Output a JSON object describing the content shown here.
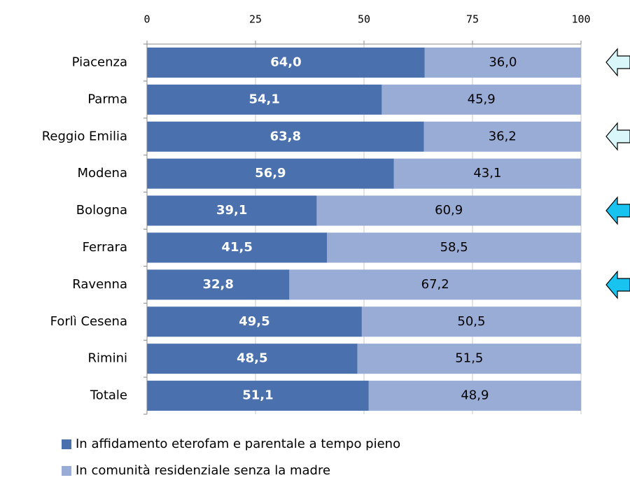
{
  "chart_data": {
    "type": "stacked_bar_horizontal",
    "categories": [
      "Piacenza",
      "Parma",
      "Reggio Emilia",
      "Modena",
      "Bologna",
      "Ferrara",
      "Ravenna",
      "Forlì Cesena",
      "Rimini",
      "Totale"
    ],
    "series": [
      {
        "name": "In affidamento eterofam e parentale a tempo pieno",
        "color": "#4a70ad",
        "values": [
          64.0,
          54.1,
          63.8,
          56.9,
          39.1,
          41.5,
          32.8,
          49.5,
          48.5,
          51.1
        ],
        "value_labels": [
          "64,0",
          "54,1",
          "63,8",
          "56,9",
          "39,1",
          "41,5",
          "32,8",
          "49,5",
          "48,5",
          "51,1"
        ]
      },
      {
        "name": "In comunità residenziale senza la madre",
        "color": "#98acd6",
        "values": [
          36.0,
          45.9,
          36.2,
          43.1,
          60.9,
          58.5,
          67.2,
          50.5,
          51.5,
          48.9
        ],
        "value_labels": [
          "36,0",
          "45,9",
          "36,2",
          "43,1",
          "60,9",
          "58,5",
          "67,2",
          "50,5",
          "51,5",
          "48,9"
        ]
      }
    ],
    "xlim": [
      0,
      100
    ],
    "xticks": [
      0,
      25,
      50,
      75,
      100
    ],
    "grid": true,
    "legend": "bottom"
  }
}
